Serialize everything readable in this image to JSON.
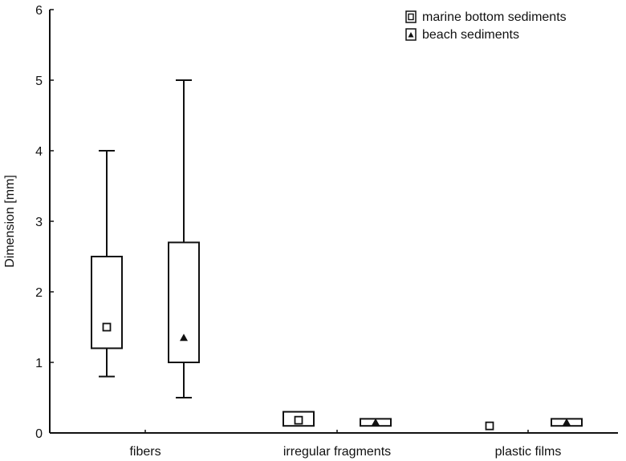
{
  "chart_data": {
    "type": "box",
    "title": "",
    "xlabel": "",
    "ylabel": "Dimension [mm]",
    "ylim": [
      0,
      6
    ],
    "yticks": [
      0,
      1,
      2,
      3,
      4,
      5,
      6
    ],
    "grid": false,
    "legend_position": "top-right",
    "categories": [
      "fibers",
      "irregular fragments",
      "plastic films"
    ],
    "series": [
      {
        "name": "marine bottom sediments",
        "marker": "open-square",
        "boxes": [
          {
            "category": "fibers",
            "whisker_low": 0.8,
            "q1": 1.2,
            "center": 1.5,
            "q3": 2.5,
            "whisker_high": 4.0
          },
          {
            "category": "irregular fragments",
            "whisker_low": 0.1,
            "q1": 0.1,
            "center": 0.18,
            "q3": 0.3,
            "whisker_high": 0.3
          },
          {
            "category": "plastic films",
            "whisker_low": 0.1,
            "q1": 0.1,
            "center": 0.1,
            "q3": 0.1,
            "whisker_high": 0.1
          }
        ]
      },
      {
        "name": "beach sediments",
        "marker": "filled-triangle",
        "boxes": [
          {
            "category": "fibers",
            "whisker_low": 0.5,
            "q1": 1.0,
            "center": 1.35,
            "q3": 2.7,
            "whisker_high": 5.0
          },
          {
            "category": "irregular fragments",
            "whisker_low": 0.1,
            "q1": 0.1,
            "center": 0.15,
            "q3": 0.2,
            "whisker_high": 0.2
          },
          {
            "category": "plastic films",
            "whisker_low": 0.1,
            "q1": 0.1,
            "center": 0.15,
            "q3": 0.2,
            "whisker_high": 0.2
          }
        ]
      }
    ]
  },
  "colors": {
    "axis": "#111111",
    "background": "#ffffff"
  }
}
